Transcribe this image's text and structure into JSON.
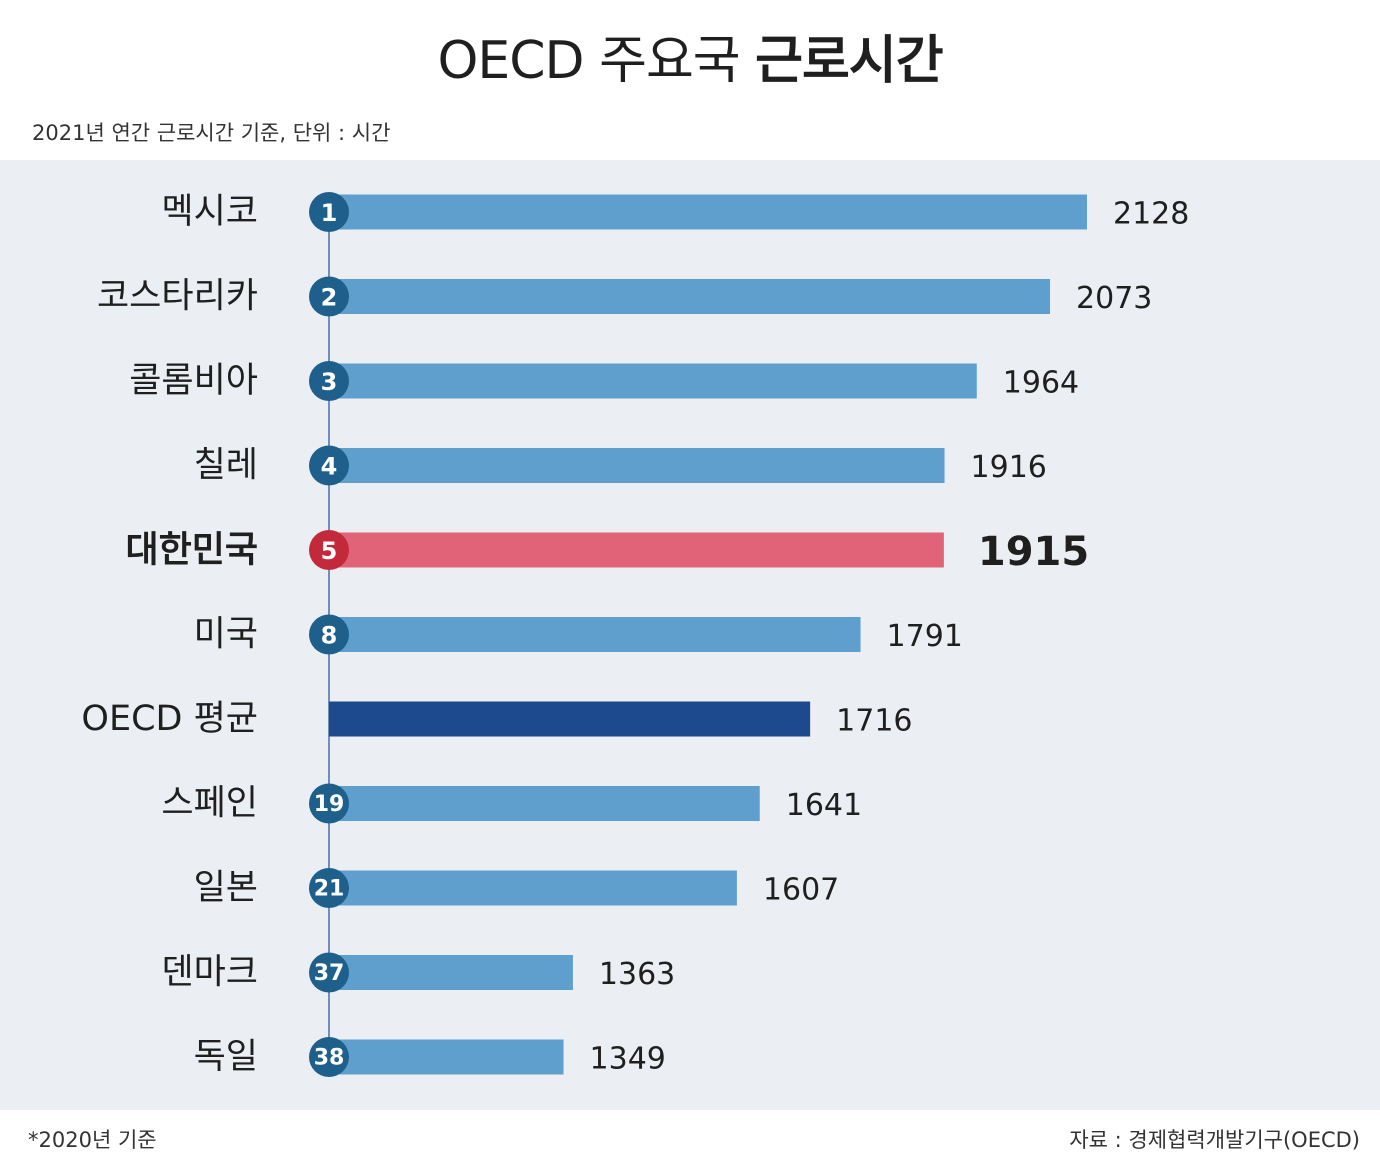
{
  "title": {
    "regular": "OECD 주요국",
    "bold": "근로시간"
  },
  "subtitle": "2021년 연간 근로시간 기준, 단위 : 시간",
  "footnote": "*2020년 기준",
  "source": "자료 : 경제협력개발기구(OECD)",
  "colors": {
    "panel_bg": "#ebeff4",
    "bar": "#5f9fcd",
    "bar_highlight": "#e06377",
    "bar_average": "#1d4a8f",
    "rank_circle": "#1f5f8b",
    "rank_circle_highlight": "#c22a3b",
    "axis": "#4a6fa5"
  },
  "chart_data": {
    "type": "bar",
    "orientation": "horizontal",
    "title": "OECD 주요국 근로시간",
    "xlabel": "",
    "ylabel": "",
    "unit": "시간",
    "xlim": [
      1000,
      2200
    ],
    "grid": false,
    "legend": "none",
    "categories": [
      "멕시코",
      "코스타리카",
      "콜롬비아",
      "칠레",
      "대한민국",
      "미국",
      "OECD 평균",
      "스페인",
      "일본",
      "덴마크",
      "독일"
    ],
    "ranks": [
      "1",
      "2",
      "3",
      "4",
      "5",
      "8",
      "",
      "19",
      "21",
      "37",
      "38"
    ],
    "value_labels": [
      "2128",
      "2073",
      "1964",
      "1916",
      "1915",
      "1791",
      "1716",
      "1641",
      "1607",
      "1363",
      "1349"
    ],
    "values": [
      2128,
      2073,
      1964,
      1916,
      1915,
      1791,
      1716,
      1641,
      1607,
      1363,
      1349
    ],
    "highlight": "대한민국",
    "average": "OECD 평균"
  }
}
